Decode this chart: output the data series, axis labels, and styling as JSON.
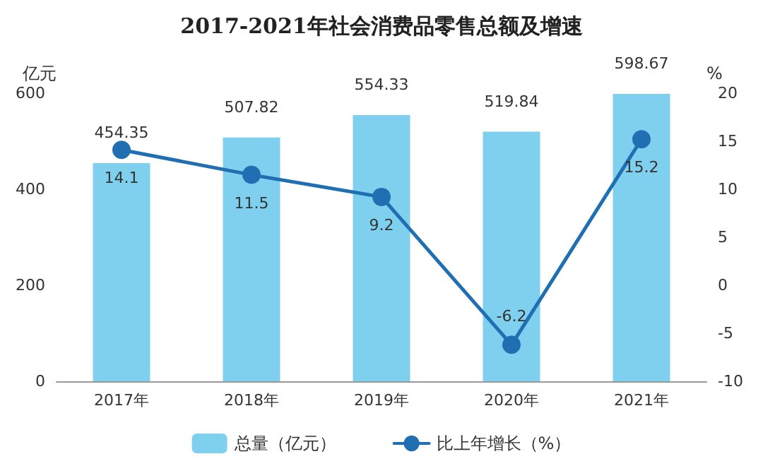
{
  "chart_data": {
    "type": "bar",
    "title": "2017-2021年社会消费品零售总额及增速",
    "categories": [
      "2017年",
      "2018年",
      "2019年",
      "2020年",
      "2021年"
    ],
    "series": [
      {
        "name": "总量（亿元）",
        "color": "#7ed0ee",
        "values": [
          454.35,
          507.82,
          554.33,
          519.84,
          598.67
        ]
      },
      {
        "name": "比上年增长（%）",
        "type": "line",
        "axis": "y2",
        "color": "#1f6fb2",
        "values": [
          14.1,
          11.5,
          9.2,
          -6.2,
          15.2
        ]
      }
    ],
    "ylabel": "亿元",
    "y2label": "%",
    "ylim": [
      0,
      600
    ],
    "yticks": [
      0,
      200,
      400,
      600
    ],
    "y2lim": [
      -10,
      20
    ],
    "y2ticks": [
      -10,
      -5,
      0,
      5,
      10,
      15,
      20
    ],
    "data_labels": true,
    "legend": "bottom",
    "grid": false,
    "marker": "circle",
    "line_style": "solid"
  }
}
